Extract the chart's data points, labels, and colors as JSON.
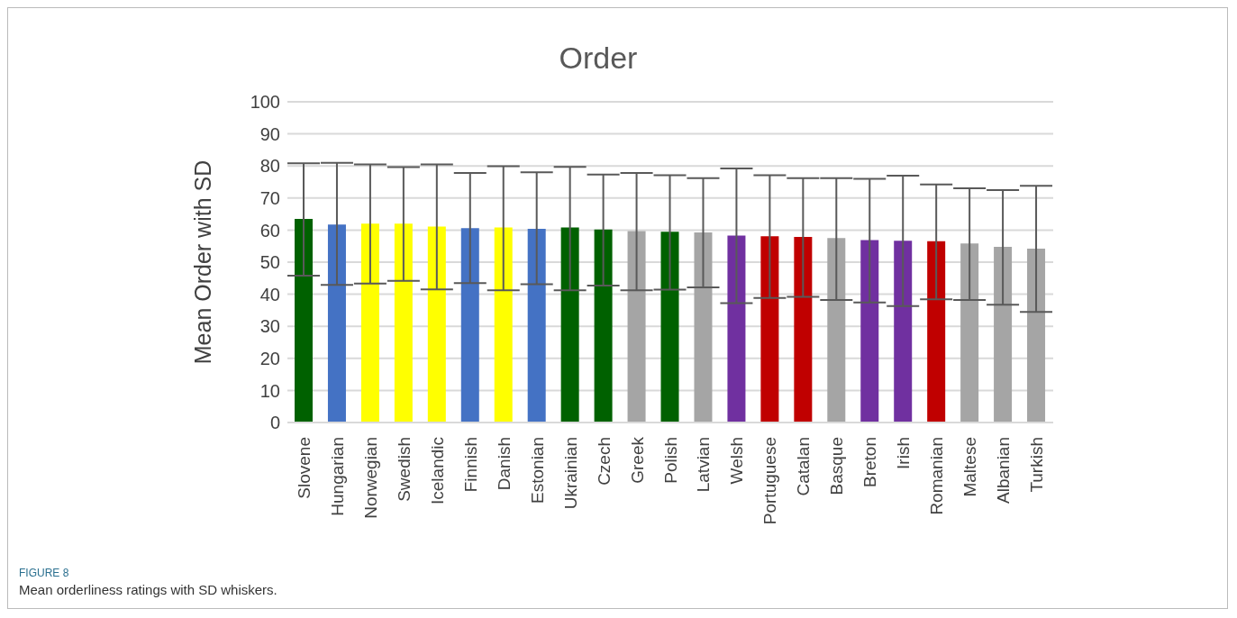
{
  "chart_data": {
    "type": "bar",
    "title": "Order",
    "ylabel": "Mean Order with SD",
    "categories": [
      "Slovene",
      "Hungarian",
      "Norwegian",
      "Swedish",
      "Icelandic",
      "Finnish",
      "Danish",
      "Estonian",
      "Ukrainian",
      "Czech",
      "Greek",
      "Polish",
      "Latvian",
      "Welsh",
      "Portuguese",
      "Catalan",
      "Basque",
      "Breton",
      "Irish",
      "Romanian",
      "Maltese",
      "Albanian",
      "Turkish"
    ],
    "values": [
      63.5,
      61.7,
      62.0,
      62.0,
      61.1,
      60.6,
      60.8,
      60.4,
      60.8,
      60.2,
      59.7,
      59.5,
      59.3,
      58.3,
      58.1,
      57.9,
      57.5,
      56.9,
      56.7,
      56.5,
      55.8,
      54.8,
      54.2
    ],
    "errors": [
      [
        45.8,
        80.8
      ],
      [
        42.9,
        81.0
      ],
      [
        43.3,
        80.5
      ],
      [
        44.2,
        79.6
      ],
      [
        41.5,
        80.5
      ],
      [
        43.5,
        77.8
      ],
      [
        41.2,
        79.9
      ],
      [
        43.1,
        78.0
      ],
      [
        41.2,
        79.7
      ],
      [
        42.7,
        77.3
      ],
      [
        41.2,
        77.8
      ],
      [
        41.4,
        77.1
      ],
      [
        42.1,
        76.2
      ],
      [
        37.2,
        79.2
      ],
      [
        38.8,
        77.1
      ],
      [
        39.2,
        76.2
      ],
      [
        38.2,
        76.2
      ],
      [
        37.4,
        76.0
      ],
      [
        36.3,
        77.0
      ],
      [
        38.4,
        74.2
      ],
      [
        38.2,
        73.0
      ],
      [
        36.7,
        72.5
      ],
      [
        34.5,
        73.8
      ]
    ],
    "colors": [
      "#006100",
      "#4472c4",
      "#ffff00",
      "#ffff00",
      "#ffff00",
      "#4472c4",
      "#ffff00",
      "#4472c4",
      "#006100",
      "#006100",
      "#a5a5a5",
      "#006100",
      "#a5a5a5",
      "#7030a0",
      "#c00000",
      "#c00000",
      "#a5a5a5",
      "#7030a0",
      "#7030a0",
      "#c00000",
      "#a5a5a5",
      "#a5a5a5",
      "#a5a5a5"
    ],
    "ylim": [
      0,
      100
    ],
    "yticks": [
      0,
      10,
      20,
      30,
      40,
      50,
      60,
      70,
      80,
      90,
      100
    ],
    "grid": "y",
    "annotations": [
      "FIGURE 8",
      "Mean orderliness ratings with SD whiskers."
    ]
  }
}
